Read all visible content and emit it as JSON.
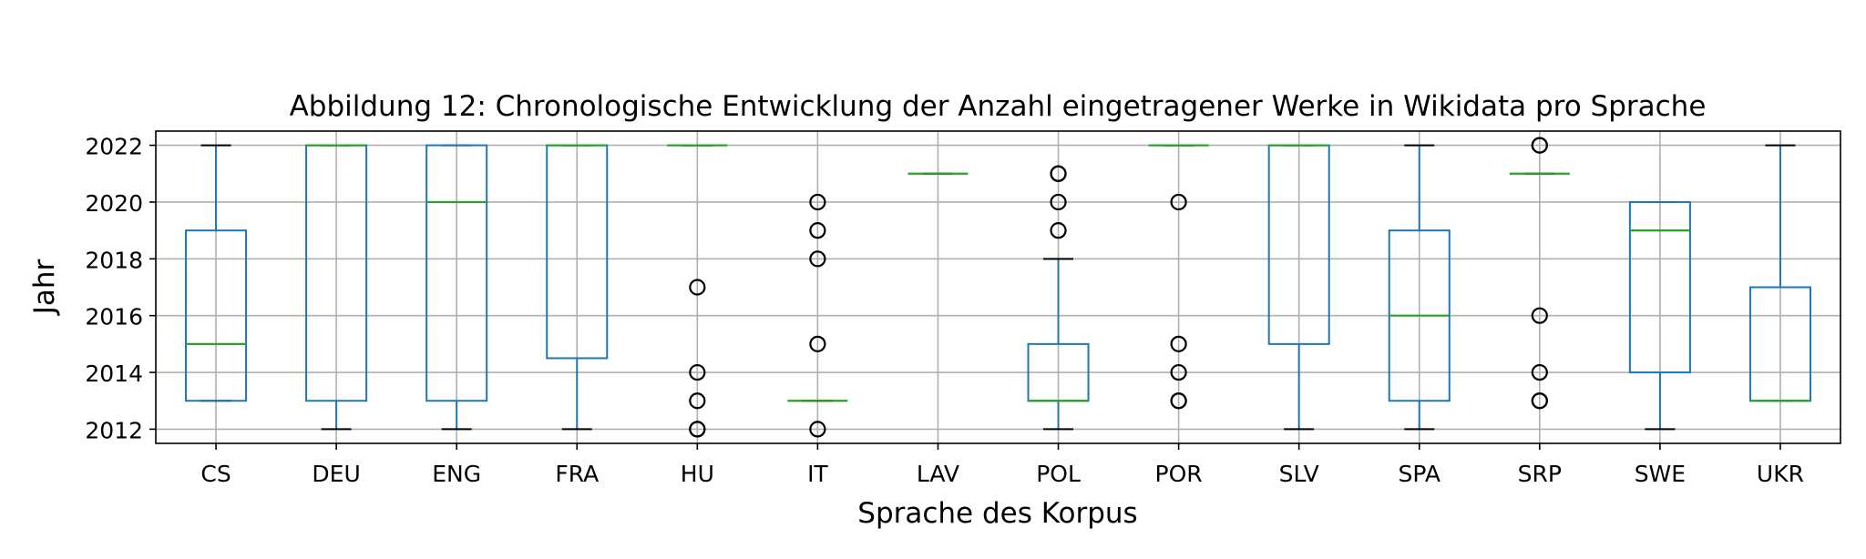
{
  "chart_data": {
    "type": "box",
    "title": "Abbildung 12: Chronologische Entwicklung der Anzahl eingetragener Werke in Wikidata pro Sprache",
    "xlabel": "Sprache des Korpus",
    "ylabel": "Jahr",
    "ylim": [
      2011.5,
      2022.5
    ],
    "yticks": [
      2012,
      2014,
      2016,
      2018,
      2020,
      2022
    ],
    "grid": true,
    "colors": {
      "box": "#1f77b4",
      "median": "#2ca02c",
      "whisker_cap": "#000000",
      "flier": "#000000",
      "grid": "#b0b0b0"
    },
    "categories": [
      "CS",
      "DEU",
      "ENG",
      "FRA",
      "HU",
      "IT",
      "LAV",
      "POL",
      "POR",
      "SLV",
      "SPA",
      "SRP",
      "SWE",
      "UKR"
    ],
    "boxes": [
      {
        "label": "CS",
        "whislo": 2013,
        "q1": 2013,
        "med": 2015,
        "q3": 2019,
        "whishi": 2022,
        "fliers": []
      },
      {
        "label": "DEU",
        "whislo": 2012,
        "q1": 2013,
        "med": 2022,
        "q3": 2022,
        "whishi": 2022,
        "fliers": []
      },
      {
        "label": "ENG",
        "whislo": 2012,
        "q1": 2013,
        "med": 2020,
        "q3": 2022,
        "whishi": 2022,
        "fliers": []
      },
      {
        "label": "FRA",
        "whislo": 2012,
        "q1": 2014.5,
        "med": 2022,
        "q3": 2022,
        "whishi": 2022,
        "fliers": []
      },
      {
        "label": "HU",
        "whislo": 2022,
        "q1": 2022,
        "med": 2022,
        "q3": 2022,
        "whishi": 2022,
        "fliers": [
          2017,
          2014,
          2013,
          2012,
          2012
        ]
      },
      {
        "label": "IT",
        "whislo": 2013,
        "q1": 2013,
        "med": 2013,
        "q3": 2013,
        "whishi": 2013,
        "fliers": [
          2020,
          2019,
          2018,
          2015,
          2012
        ]
      },
      {
        "label": "LAV",
        "whislo": 2021,
        "q1": 2021,
        "med": 2021,
        "q3": 2021,
        "whishi": 2021,
        "fliers": []
      },
      {
        "label": "POL",
        "whislo": 2012,
        "q1": 2013,
        "med": 2013,
        "q3": 2015,
        "whishi": 2018,
        "fliers": [
          2021,
          2021,
          2020,
          2019
        ]
      },
      {
        "label": "POR",
        "whislo": 2022,
        "q1": 2022,
        "med": 2022,
        "q3": 2022,
        "whishi": 2022,
        "fliers": [
          2020,
          2015,
          2014,
          2013,
          2013
        ]
      },
      {
        "label": "SLV",
        "whislo": 2012,
        "q1": 2015,
        "med": 2022,
        "q3": 2022,
        "whishi": 2022,
        "fliers": []
      },
      {
        "label": "SPA",
        "whislo": 2012,
        "q1": 2013,
        "med": 2016,
        "q3": 2019,
        "whishi": 2022,
        "fliers": []
      },
      {
        "label": "SRP",
        "whislo": 2021,
        "q1": 2021,
        "med": 2021,
        "q3": 2021,
        "whishi": 2021,
        "fliers": [
          2022,
          2022,
          2016,
          2014,
          2013,
          2013
        ]
      },
      {
        "label": "SWE",
        "whislo": 2012,
        "q1": 2014,
        "med": 2019,
        "q3": 2020,
        "whishi": 2020,
        "fliers": []
      },
      {
        "label": "UKR",
        "whislo": 2013,
        "q1": 2013,
        "med": 2013,
        "q3": 2017,
        "whishi": 2022,
        "fliers": []
      }
    ]
  }
}
